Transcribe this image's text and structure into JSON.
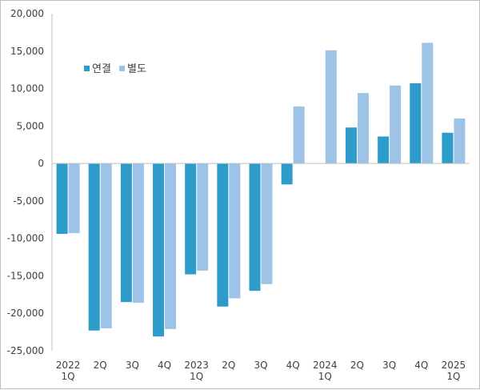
{
  "chart_data": {
    "type": "bar",
    "categories": [
      [
        "2022",
        "1Q"
      ],
      [
        "2Q"
      ],
      [
        "3Q"
      ],
      [
        "4Q"
      ],
      [
        "2023",
        "1Q"
      ],
      [
        "2Q"
      ],
      [
        "3Q"
      ],
      [
        "4Q"
      ],
      [
        "2024",
        "1Q"
      ],
      [
        "2Q"
      ],
      [
        "3Q"
      ],
      [
        "4Q"
      ],
      [
        "2025",
        "1Q"
      ]
    ],
    "series": [
      {
        "name": "연결",
        "color": "#2E9CCA",
        "values": [
          -9400,
          -22300,
          -18500,
          -23100,
          -14800,
          -19100,
          -17000,
          -2800,
          null,
          4800,
          3600,
          10700,
          4100
        ]
      },
      {
        "name": "별도",
        "color": "#9DC3E6",
        "values": [
          -9300,
          -22000,
          -18600,
          -22100,
          -14300,
          -18000,
          -16100,
          7600,
          15100,
          9400,
          10400,
          16100,
          6000
        ]
      }
    ],
    "ylim": [
      -25000,
      20000
    ],
    "yticks": [
      {
        "value": 20000,
        "label": "20,000"
      },
      {
        "value": 15000,
        "label": "15,000"
      },
      {
        "value": 10000,
        "label": "10,000"
      },
      {
        "value": 5000,
        "label": "5,000"
      },
      {
        "value": 0,
        "label": "0"
      },
      {
        "value": -5000,
        "label": "-5,000"
      },
      {
        "value": -10000,
        "label": "-10,000"
      },
      {
        "value": -15000,
        "label": "-15,000"
      },
      {
        "value": -20000,
        "label": "-20,000"
      },
      {
        "value": -25000,
        "label": "-25,000"
      }
    ],
    "negative_label_color": "#C00000",
    "positive_label_color": "#404040",
    "grid": false,
    "legend_position": "top-left"
  }
}
